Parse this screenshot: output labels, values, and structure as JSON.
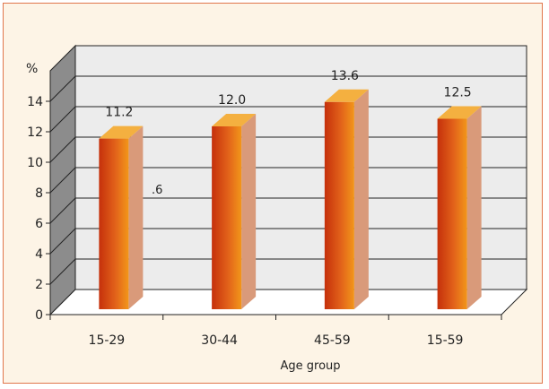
{
  "chart_data": {
    "type": "bar",
    "categories": [
      "15-29",
      "30-44",
      "45-59",
      "15-59"
    ],
    "values": [
      11.2,
      12.0,
      13.6,
      12.5
    ],
    "data_labels": [
      "11.2",
      "12.0",
      "13.6",
      "12.5"
    ],
    "title": "",
    "xlabel": "Age group",
    "ylabel": "%",
    "ylim": [
      0,
      16
    ],
    "y_ticks": [
      "0",
      "2",
      "4",
      "6",
      "8",
      "10",
      "12",
      "14"
    ],
    "grid": true,
    "stray_text": ".6",
    "colors": {
      "frame_border": "#e0764c",
      "frame_fill": "#fdf4e6",
      "wall": "#ececec",
      "side_wall": "#8c8c8c",
      "floor": "#ffffff",
      "bar_front_dark": "#c5300b",
      "bar_front_light": "#f2961a",
      "bar_side": "#d99a7a",
      "bar_top": "#f4b040"
    }
  }
}
